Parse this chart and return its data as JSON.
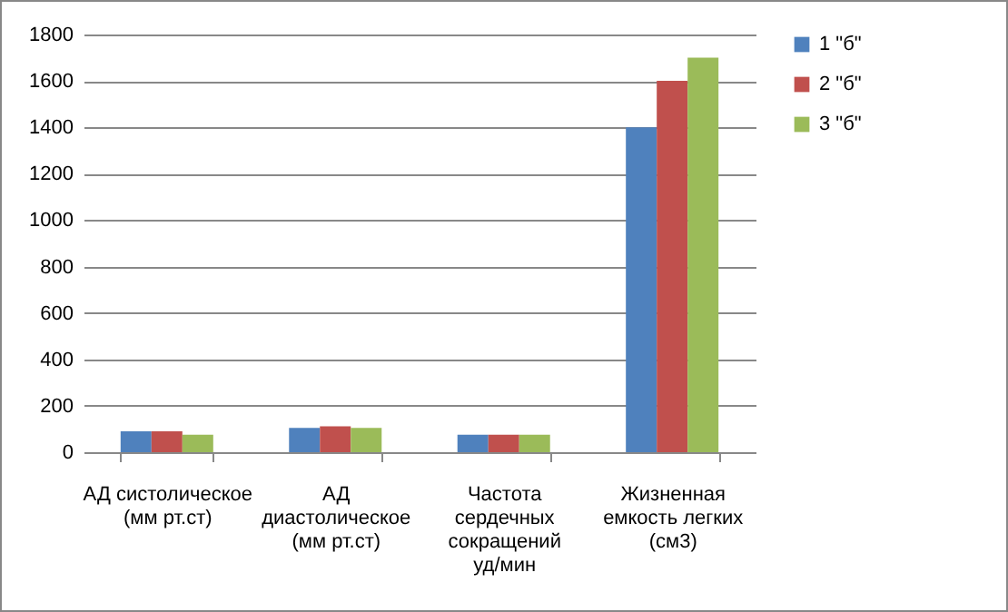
{
  "chart_data": {
    "type": "bar",
    "categories": [
      "АД систолическое (мм рт.ст)",
      "АД диастолическое (мм рт.ст)",
      "Частота сердечных сокращений уд/мин",
      "Жизненная емкость легких (см3)"
    ],
    "series": [
      {
        "name": "1 \"б\"",
        "color": "#4f81bd",
        "values": [
          90,
          105,
          75,
          1400
        ]
      },
      {
        "name": "2 \"б\"",
        "color": "#c0504d",
        "values": [
          90,
          112,
          75,
          1600
        ]
      },
      {
        "name": "3 \"б\"",
        "color": "#9bbb59",
        "values": [
          75,
          105,
          75,
          1700
        ]
      }
    ],
    "ylim": [
      0,
      1800
    ],
    "yticks": [
      0,
      200,
      400,
      600,
      800,
      1000,
      1200,
      1400,
      1600,
      1800
    ],
    "grid": "y",
    "legend": "right"
  }
}
